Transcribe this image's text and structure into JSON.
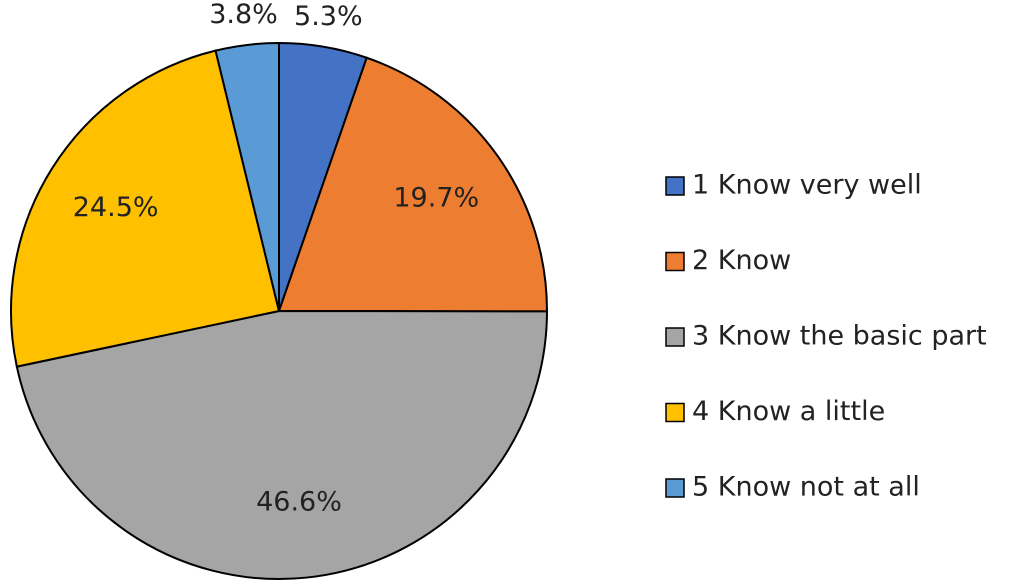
{
  "chart_data": {
    "type": "pie",
    "categories": [
      "1 Know very well",
      "2 Know",
      "3 Know the basic part",
      "4 Know a little",
      "5 Know not at all"
    ],
    "values": [
      5.3,
      19.7,
      46.6,
      24.5,
      3.8
    ],
    "value_labels": [
      "5.3%",
      "19.7%",
      "46.6%",
      "24.5%",
      "3.8%"
    ],
    "colors": [
      "#4472c4",
      "#ed7d31",
      "#a5a5a5",
      "#ffc000",
      "#5b9bd5"
    ],
    "legend": "right"
  }
}
